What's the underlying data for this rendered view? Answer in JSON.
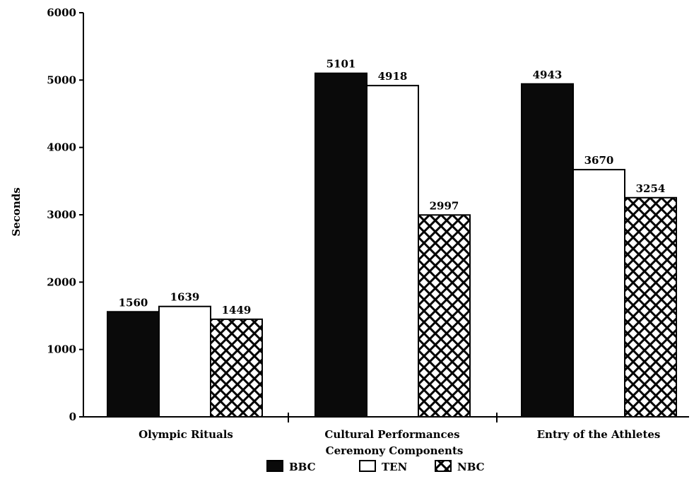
{
  "chart_data": {
    "type": "bar",
    "categories": [
      "Olympic Rituals",
      "Cultural Performances",
      "Entry of the Athletes"
    ],
    "series": [
      {
        "name": "BBC",
        "values": [
          1560,
          5101,
          4943
        ],
        "fill": "#0a0a0a"
      },
      {
        "name": "TEN",
        "values": [
          1639,
          4918,
          3670
        ],
        "fill": "#ffffff"
      },
      {
        "name": "NBC",
        "values": [
          1449,
          2997,
          3254
        ],
        "fill": "crosshatch"
      }
    ],
    "title": "",
    "xlabel": "Ceremony Components",
    "ylabel": "Seconds",
    "ylim": [
      0,
      6000
    ],
    "yticks": [
      0,
      1000,
      2000,
      3000,
      4000,
      5000,
      6000
    ],
    "value_labels": [
      [
        "1560",
        "1639",
        "1449"
      ],
      [
        "5101",
        "4918",
        "2997"
      ],
      [
        "4943",
        "3670",
        "3254"
      ]
    ],
    "grid": false,
    "legend_position": "bottom"
  }
}
